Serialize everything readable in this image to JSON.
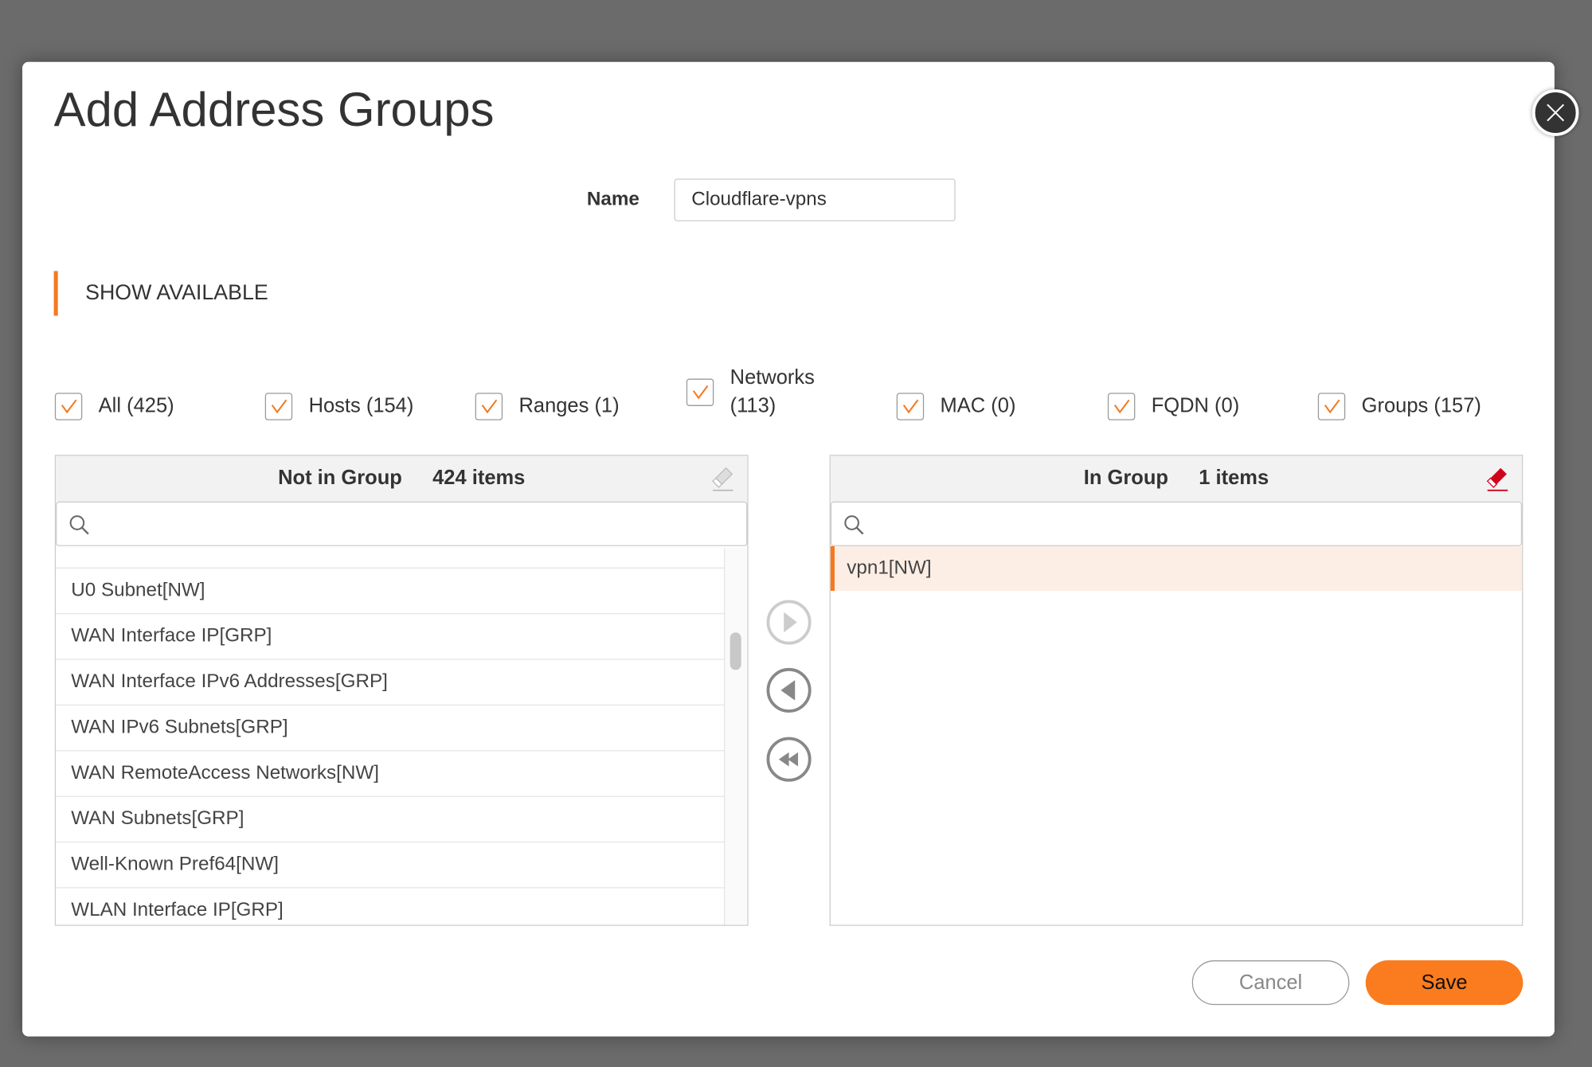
{
  "dialog": {
    "title": "Add Address Groups",
    "name_label": "Name",
    "name_value": "Cloudflare-vpns",
    "section_title": "SHOW AVAILABLE"
  },
  "filters": [
    {
      "label": "All (425)",
      "checked": true
    },
    {
      "label": "Hosts (154)",
      "checked": true
    },
    {
      "label": "Ranges (1)",
      "checked": true
    },
    {
      "label": "Networks (113)",
      "checked": true
    },
    {
      "label": "MAC (0)",
      "checked": true
    },
    {
      "label": "FQDN (0)",
      "checked": true
    },
    {
      "label": "Groups (157)",
      "checked": true
    }
  ],
  "left_panel": {
    "title": "Not in Group",
    "count": "424 items",
    "search_placeholder": "",
    "items": [
      "U0 Subnet[NW]",
      "WAN Interface IP[GRP]",
      "WAN Interface IPv6 Addresses[GRP]",
      "WAN IPv6 Subnets[GRP]",
      "WAN RemoteAccess Networks[NW]",
      "WAN Subnets[GRP]",
      "Well-Known Pref64[NW]",
      "WLAN Interface IP[GRP]"
    ]
  },
  "right_panel": {
    "title": "In Group",
    "count": "1 items",
    "search_placeholder": "",
    "items": [
      "vpn1[NW]"
    ]
  },
  "buttons": {
    "cancel": "Cancel",
    "save": "Save"
  },
  "colors": {
    "accent": "#f47920",
    "save": "#fb7c1e",
    "selected_row": "#fdeee5",
    "eraser_active": "#d0021b"
  }
}
